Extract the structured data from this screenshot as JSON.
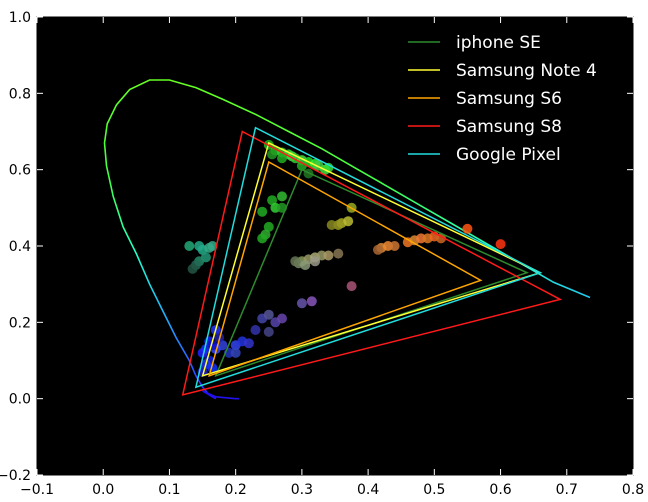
{
  "chart_data": {
    "type": "scatter",
    "background": "#000000",
    "xlim": [
      -0.1,
      0.8
    ],
    "ylim": [
      -0.2,
      1.0
    ],
    "xticks": [
      -0.1,
      0.0,
      0.1,
      0.2,
      0.3,
      0.4,
      0.5,
      0.6,
      0.7,
      0.8
    ],
    "yticks": [
      -0.2,
      0.0,
      0.2,
      0.4,
      0.6,
      0.8,
      1.0
    ],
    "xtick_labels": [
      "−0.1",
      "0.0",
      "0.1",
      "0.2",
      "0.3",
      "0.4",
      "0.5",
      "0.6",
      "0.7",
      "0.8"
    ],
    "ytick_labels": [
      "−0.2",
      "0.0",
      "0.2",
      "0.4",
      "0.6",
      "0.8",
      "1.0"
    ],
    "grid": false,
    "legend_position": "top-right",
    "locus": [
      [
        0.17,
        0.0
      ],
      [
        0.16,
        0.01
      ],
      [
        0.15,
        0.03
      ],
      [
        0.14,
        0.06
      ],
      [
        0.13,
        0.1
      ],
      [
        0.11,
        0.16
      ],
      [
        0.09,
        0.23
      ],
      [
        0.07,
        0.3
      ],
      [
        0.05,
        0.38
      ],
      [
        0.03,
        0.45
      ],
      [
        0.015,
        0.53
      ],
      [
        0.005,
        0.61
      ],
      [
        0.002,
        0.67
      ],
      [
        0.006,
        0.72
      ],
      [
        0.02,
        0.77
      ],
      [
        0.04,
        0.81
      ],
      [
        0.07,
        0.835
      ],
      [
        0.1,
        0.835
      ],
      [
        0.14,
        0.815
      ],
      [
        0.18,
        0.785
      ],
      [
        0.23,
        0.745
      ],
      [
        0.28,
        0.7
      ],
      [
        0.33,
        0.655
      ],
      [
        0.38,
        0.605
      ],
      [
        0.43,
        0.555
      ],
      [
        0.48,
        0.505
      ],
      [
        0.53,
        0.455
      ],
      [
        0.58,
        0.405
      ],
      [
        0.63,
        0.355
      ],
      [
        0.68,
        0.305
      ],
      [
        0.735,
        0.265
      ]
    ],
    "locus_tail": [
      [
        0.17,
        0.0
      ],
      [
        0.15,
        0.02
      ],
      [
        0.17,
        0.005
      ],
      [
        0.2,
        0.0
      ],
      [
        0.205,
        0.0
      ]
    ],
    "series": [
      {
        "name": "iphone SE",
        "color": "#2e8b2e",
        "vertices": [
          [
            0.17,
            0.06
          ],
          [
            0.3,
            0.6
          ],
          [
            0.64,
            0.33
          ]
        ]
      },
      {
        "name": "Samsung Note 4",
        "color": "#ffff33",
        "vertices": [
          [
            0.15,
            0.06
          ],
          [
            0.25,
            0.67
          ],
          [
            0.66,
            0.33
          ]
        ]
      },
      {
        "name": "Samsung S6",
        "color": "#ffa500",
        "vertices": [
          [
            0.16,
            0.06
          ],
          [
            0.25,
            0.62
          ],
          [
            0.57,
            0.31
          ]
        ]
      },
      {
        "name": "Samsung S8",
        "color": "#ff1a1a",
        "vertices": [
          [
            0.12,
            0.01
          ],
          [
            0.21,
            0.7
          ],
          [
            0.69,
            0.26
          ]
        ]
      },
      {
        "name": "Google Pixel",
        "color": "#22dddd",
        "vertices": [
          [
            0.14,
            0.03
          ],
          [
            0.23,
            0.71
          ],
          [
            0.66,
            0.33
          ]
        ]
      }
    ],
    "points": [
      {
        "x": 0.25,
        "y": 0.665,
        "color": "#22bb22"
      },
      {
        "x": 0.26,
        "y": 0.65,
        "color": "#22cc22"
      },
      {
        "x": 0.27,
        "y": 0.645,
        "color": "#33cc33"
      },
      {
        "x": 0.28,
        "y": 0.64,
        "color": "#33dd33"
      },
      {
        "x": 0.285,
        "y": 0.635,
        "color": "#44dd44"
      },
      {
        "x": 0.29,
        "y": 0.63,
        "color": "#33cc33"
      },
      {
        "x": 0.3,
        "y": 0.625,
        "color": "#44dd44"
      },
      {
        "x": 0.31,
        "y": 0.62,
        "color": "#22dd22"
      },
      {
        "x": 0.32,
        "y": 0.615,
        "color": "#33ee33"
      },
      {
        "x": 0.325,
        "y": 0.61,
        "color": "#44cc44"
      },
      {
        "x": 0.335,
        "y": 0.6,
        "color": "#44dd44"
      },
      {
        "x": 0.34,
        "y": 0.605,
        "color": "#33dd33"
      },
      {
        "x": 0.255,
        "y": 0.64,
        "color": "#229922"
      },
      {
        "x": 0.27,
        "y": 0.63,
        "color": "#22aa22"
      },
      {
        "x": 0.3,
        "y": 0.61,
        "color": "#22aa22"
      },
      {
        "x": 0.31,
        "y": 0.59,
        "color": "#227722"
      },
      {
        "x": 0.27,
        "y": 0.53,
        "color": "#33bb33"
      },
      {
        "x": 0.255,
        "y": 0.52,
        "color": "#22aa22"
      },
      {
        "x": 0.26,
        "y": 0.5,
        "color": "#33cc33"
      },
      {
        "x": 0.24,
        "y": 0.49,
        "color": "#22aa22"
      },
      {
        "x": 0.25,
        "y": 0.45,
        "color": "#22aa22"
      },
      {
        "x": 0.245,
        "y": 0.43,
        "color": "#33aa33"
      },
      {
        "x": 0.24,
        "y": 0.42,
        "color": "#22aa22"
      },
      {
        "x": 0.27,
        "y": 0.5,
        "color": "#229922"
      },
      {
        "x": 0.145,
        "y": 0.4,
        "color": "#22aa88"
      },
      {
        "x": 0.15,
        "y": 0.39,
        "color": "#22aa88"
      },
      {
        "x": 0.16,
        "y": 0.395,
        "color": "#33aa88"
      },
      {
        "x": 0.155,
        "y": 0.37,
        "color": "#229977"
      },
      {
        "x": 0.145,
        "y": 0.36,
        "color": "#228866"
      },
      {
        "x": 0.13,
        "y": 0.4,
        "color": "#22aa77"
      },
      {
        "x": 0.14,
        "y": 0.35,
        "color": "#226655"
      },
      {
        "x": 0.135,
        "y": 0.34,
        "color": "#225544"
      },
      {
        "x": 0.165,
        "y": 0.4,
        "color": "#33aa88"
      },
      {
        "x": 0.36,
        "y": 0.46,
        "color": "#aaaa22"
      },
      {
        "x": 0.37,
        "y": 0.465,
        "color": "#bbbb33"
      },
      {
        "x": 0.355,
        "y": 0.455,
        "color": "#999922"
      },
      {
        "x": 0.375,
        "y": 0.5,
        "color": "#99aa22"
      },
      {
        "x": 0.345,
        "y": 0.455,
        "color": "#888822"
      },
      {
        "x": 0.3,
        "y": 0.36,
        "color": "#889955"
      },
      {
        "x": 0.31,
        "y": 0.365,
        "color": "#999966"
      },
      {
        "x": 0.32,
        "y": 0.37,
        "color": "#aaaa77"
      },
      {
        "x": 0.33,
        "y": 0.375,
        "color": "#999966"
      },
      {
        "x": 0.34,
        "y": 0.375,
        "color": "#aa9966"
      },
      {
        "x": 0.355,
        "y": 0.38,
        "color": "#887755"
      },
      {
        "x": 0.295,
        "y": 0.355,
        "color": "#778866"
      },
      {
        "x": 0.305,
        "y": 0.35,
        "color": "#889977"
      },
      {
        "x": 0.32,
        "y": 0.36,
        "color": "#999988"
      },
      {
        "x": 0.29,
        "y": 0.36,
        "color": "#667755"
      },
      {
        "x": 0.42,
        "y": 0.395,
        "color": "#dd8833"
      },
      {
        "x": 0.43,
        "y": 0.4,
        "color": "#ee8833"
      },
      {
        "x": 0.46,
        "y": 0.41,
        "color": "#ee7722"
      },
      {
        "x": 0.47,
        "y": 0.415,
        "color": "#dd8833"
      },
      {
        "x": 0.48,
        "y": 0.42,
        "color": "#ee7733"
      },
      {
        "x": 0.49,
        "y": 0.42,
        "color": "#dd7722"
      },
      {
        "x": 0.5,
        "y": 0.425,
        "color": "#ee6622"
      },
      {
        "x": 0.51,
        "y": 0.42,
        "color": "#cc6622"
      },
      {
        "x": 0.44,
        "y": 0.4,
        "color": "#cc7733"
      },
      {
        "x": 0.415,
        "y": 0.39,
        "color": "#aa6633"
      },
      {
        "x": 0.55,
        "y": 0.445,
        "color": "#ff5511"
      },
      {
        "x": 0.6,
        "y": 0.405,
        "color": "#ff3311"
      },
      {
        "x": 0.17,
        "y": 0.18,
        "color": "#2233ff"
      },
      {
        "x": 0.16,
        "y": 0.15,
        "color": "#1122ff"
      },
      {
        "x": 0.155,
        "y": 0.13,
        "color": "#1133ee"
      },
      {
        "x": 0.15,
        "y": 0.12,
        "color": "#2222ff"
      },
      {
        "x": 0.16,
        "y": 0.1,
        "color": "#1122dd"
      },
      {
        "x": 0.155,
        "y": 0.09,
        "color": "#2233ee"
      },
      {
        "x": 0.165,
        "y": 0.08,
        "color": "#1133ff"
      },
      {
        "x": 0.15,
        "y": 0.07,
        "color": "#2222cc"
      },
      {
        "x": 0.17,
        "y": 0.13,
        "color": "#3344ff"
      },
      {
        "x": 0.18,
        "y": 0.14,
        "color": "#3344dd"
      },
      {
        "x": 0.2,
        "y": 0.14,
        "color": "#3344ee"
      },
      {
        "x": 0.21,
        "y": 0.15,
        "color": "#2233dd"
      },
      {
        "x": 0.22,
        "y": 0.145,
        "color": "#3333cc"
      },
      {
        "x": 0.19,
        "y": 0.12,
        "color": "#2233bb"
      },
      {
        "x": 0.2,
        "y": 0.12,
        "color": "#3344bb"
      },
      {
        "x": 0.175,
        "y": 0.16,
        "color": "#2222aa"
      },
      {
        "x": 0.165,
        "y": 0.14,
        "color": "#1111cc"
      },
      {
        "x": 0.24,
        "y": 0.21,
        "color": "#4444aa"
      },
      {
        "x": 0.25,
        "y": 0.22,
        "color": "#555599"
      },
      {
        "x": 0.26,
        "y": 0.2,
        "color": "#5544aa"
      },
      {
        "x": 0.27,
        "y": 0.21,
        "color": "#6644aa"
      },
      {
        "x": 0.23,
        "y": 0.18,
        "color": "#3333aa"
      },
      {
        "x": 0.25,
        "y": 0.175,
        "color": "#444488"
      },
      {
        "x": 0.3,
        "y": 0.25,
        "color": "#6655aa"
      },
      {
        "x": 0.315,
        "y": 0.255,
        "color": "#8855bb"
      },
      {
        "x": 0.375,
        "y": 0.295,
        "color": "#aa5577"
      }
    ]
  }
}
